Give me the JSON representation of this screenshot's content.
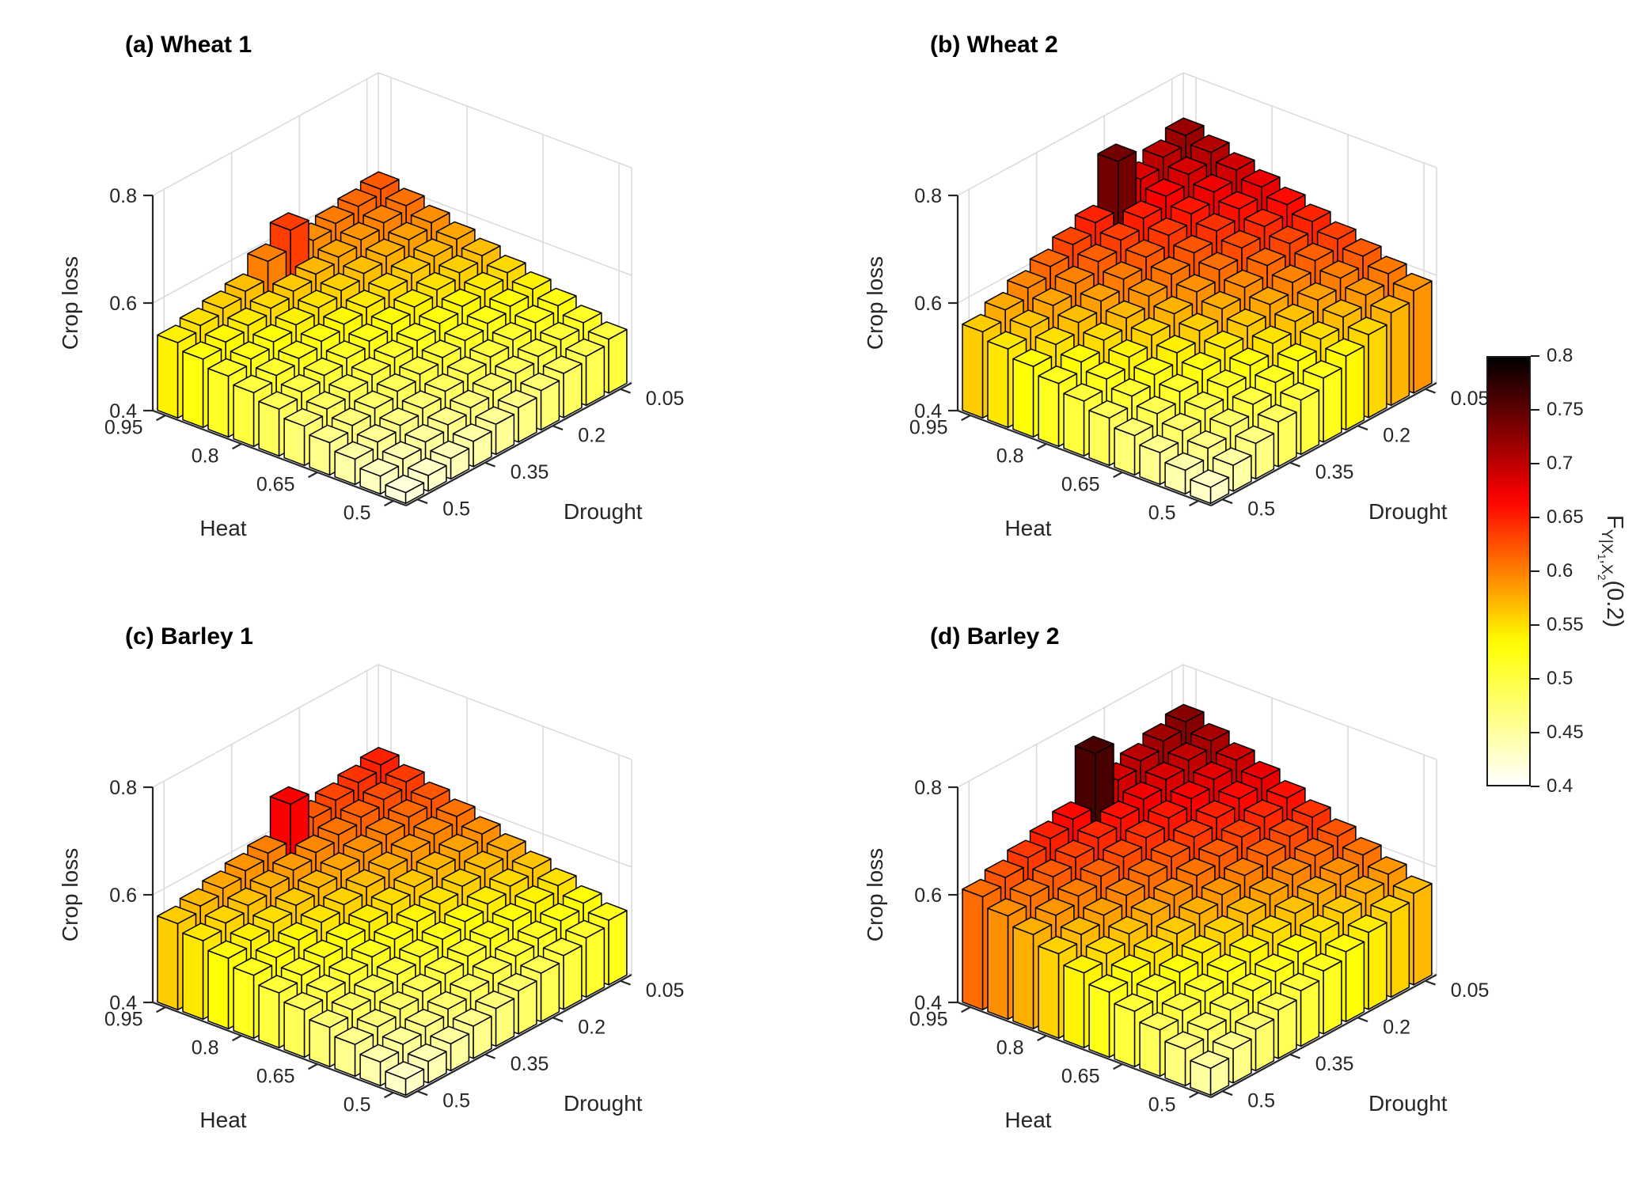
{
  "chart_data": [
    {
      "type": "bar3d",
      "panel": "a",
      "title": "(a) Wheat 1",
      "xlabel": "Heat",
      "ylabel": "Drought",
      "zlabel": "Crop loss",
      "x_ticks": [
        0.95,
        0.8,
        0.65,
        0.5
      ],
      "y_ticks": [
        0.05,
        0.2,
        0.35,
        0.5
      ],
      "z_ticks": [
        0.4,
        0.6,
        0.8
      ],
      "zlim": [
        0.4,
        0.8
      ],
      "heat_levels": [
        0.95,
        0.9,
        0.85,
        0.8,
        0.75,
        0.7,
        0.65,
        0.6,
        0.55,
        0.5
      ],
      "drought_levels": [
        0.05,
        0.1,
        0.15,
        0.2,
        0.25,
        0.3,
        0.35,
        0.4,
        0.45,
        0.5
      ],
      "values": [
        [
          0.62,
          0.611,
          0.602,
          0.593,
          0.635,
          0.6,
          0.567,
          0.558,
          0.549,
          0.54
        ],
        [
          0.607,
          0.598,
          0.589,
          0.58,
          0.571,
          0.562,
          0.553,
          0.544,
          0.536,
          0.527
        ],
        [
          0.593,
          0.584,
          0.576,
          0.567,
          0.558,
          0.549,
          0.54,
          0.531,
          0.522,
          0.513
        ],
        [
          0.58,
          0.571,
          0.562,
          0.553,
          0.544,
          0.536,
          0.527,
          0.518,
          0.509,
          0.5
        ],
        [
          0.567,
          0.558,
          0.549,
          0.54,
          0.531,
          0.522,
          0.513,
          0.504,
          0.496,
          0.487
        ],
        [
          0.553,
          0.544,
          0.536,
          0.527,
          0.518,
          0.509,
          0.5,
          0.491,
          0.482,
          0.473
        ],
        [
          0.54,
          0.531,
          0.522,
          0.513,
          0.504,
          0.496,
          0.487,
          0.478,
          0.469,
          0.46
        ],
        [
          0.527,
          0.518,
          0.509,
          0.5,
          0.491,
          0.482,
          0.473,
          0.464,
          0.456,
          0.447
        ],
        [
          0.513,
          0.504,
          0.496,
          0.487,
          0.478,
          0.469,
          0.46,
          0.451,
          0.442,
          0.433
        ],
        [
          0.5,
          0.491,
          0.482,
          0.473,
          0.464,
          0.456,
          0.447,
          0.438,
          0.429,
          0.42
        ]
      ]
    },
    {
      "type": "bar3d",
      "panel": "b",
      "title": "(b) Wheat 2",
      "xlabel": "Heat",
      "ylabel": "Drought",
      "zlabel": "Crop loss",
      "x_ticks": [
        0.95,
        0.8,
        0.65,
        0.5
      ],
      "y_ticks": [
        0.05,
        0.2,
        0.35,
        0.5
      ],
      "z_ticks": [
        0.4,
        0.6,
        0.8
      ],
      "zlim": [
        0.4,
        0.8
      ],
      "heat_levels": [
        0.95,
        0.9,
        0.85,
        0.8,
        0.75,
        0.7,
        0.65,
        0.6,
        0.55,
        0.5
      ],
      "drought_levels": [
        0.05,
        0.1,
        0.15,
        0.2,
        0.25,
        0.3,
        0.35,
        0.4,
        0.45,
        0.5
      ],
      "values": [
        [
          0.72,
          0.702,
          0.684,
          0.74,
          0.649,
          0.631,
          0.613,
          0.596,
          0.578,
          0.56
        ],
        [
          0.706,
          0.688,
          0.67,
          0.652,
          0.634,
          0.617,
          0.599,
          0.581,
          0.563,
          0.546
        ],
        [
          0.691,
          0.673,
          0.655,
          0.638,
          0.62,
          0.602,
          0.584,
          0.567,
          0.549,
          0.531
        ],
        [
          0.677,
          0.659,
          0.641,
          0.623,
          0.606,
          0.588,
          0.57,
          0.552,
          0.534,
          0.517
        ],
        [
          0.662,
          0.644,
          0.627,
          0.609,
          0.591,
          0.573,
          0.556,
          0.538,
          0.52,
          0.502
        ],
        [
          0.648,
          0.63,
          0.612,
          0.594,
          0.577,
          0.559,
          0.541,
          0.523,
          0.506,
          0.488
        ],
        [
          0.633,
          0.616,
          0.598,
          0.58,
          0.562,
          0.544,
          0.527,
          0.509,
          0.491,
          0.473
        ],
        [
          0.619,
          0.601,
          0.583,
          0.566,
          0.548,
          0.53,
          0.512,
          0.494,
          0.477,
          0.459
        ],
        [
          0.604,
          0.587,
          0.569,
          0.551,
          0.533,
          0.516,
          0.498,
          0.48,
          0.462,
          0.444
        ],
        [
          0.59,
          0.572,
          0.554,
          0.537,
          0.519,
          0.501,
          0.483,
          0.466,
          0.448,
          0.43
        ]
      ]
    },
    {
      "type": "bar3d",
      "panel": "c",
      "title": "(c) Barley 1",
      "xlabel": "Heat",
      "ylabel": "Drought",
      "zlabel": "Crop loss",
      "x_ticks": [
        0.95,
        0.8,
        0.65,
        0.5
      ],
      "y_ticks": [
        0.05,
        0.2,
        0.35,
        0.5
      ],
      "z_ticks": [
        0.4,
        0.6,
        0.8
      ],
      "zlim": [
        0.4,
        0.8
      ],
      "heat_levels": [
        0.95,
        0.9,
        0.85,
        0.8,
        0.75,
        0.7,
        0.65,
        0.6,
        0.55,
        0.5
      ],
      "drought_levels": [
        0.05,
        0.1,
        0.15,
        0.2,
        0.25,
        0.3,
        0.35,
        0.4,
        0.45,
        0.5
      ],
      "values": [
        [
          0.65,
          0.64,
          0.63,
          0.62,
          0.668,
          0.6,
          0.59,
          0.58,
          0.57,
          0.56
        ],
        [
          0.636,
          0.626,
          0.616,
          0.606,
          0.596,
          0.586,
          0.576,
          0.566,
          0.556,
          0.546
        ],
        [
          0.621,
          0.611,
          0.601,
          0.591,
          0.581,
          0.571,
          0.561,
          0.551,
          0.541,
          0.531
        ],
        [
          0.607,
          0.597,
          0.587,
          0.577,
          0.567,
          0.557,
          0.547,
          0.537,
          0.527,
          0.517
        ],
        [
          0.592,
          0.582,
          0.572,
          0.562,
          0.552,
          0.542,
          0.532,
          0.522,
          0.512,
          0.502
        ],
        [
          0.578,
          0.568,
          0.558,
          0.548,
          0.538,
          0.528,
          0.518,
          0.508,
          0.498,
          0.488
        ],
        [
          0.563,
          0.553,
          0.543,
          0.533,
          0.523,
          0.513,
          0.503,
          0.493,
          0.483,
          0.473
        ],
        [
          0.549,
          0.539,
          0.529,
          0.519,
          0.509,
          0.499,
          0.489,
          0.479,
          0.469,
          0.459
        ],
        [
          0.534,
          0.524,
          0.514,
          0.504,
          0.494,
          0.484,
          0.474,
          0.464,
          0.454,
          0.444
        ],
        [
          0.52,
          0.51,
          0.5,
          0.49,
          0.48,
          0.47,
          0.46,
          0.45,
          0.44,
          0.43
        ]
      ]
    },
    {
      "type": "bar3d",
      "panel": "d",
      "title": "(d) Barley 2",
      "xlabel": "Heat",
      "ylabel": "Drought",
      "zlabel": "Crop loss",
      "x_ticks": [
        0.95,
        0.8,
        0.65,
        0.5
      ],
      "y_ticks": [
        0.05,
        0.2,
        0.35,
        0.5
      ],
      "z_ticks": [
        0.4,
        0.6,
        0.8
      ],
      "zlim": [
        0.4,
        0.8
      ],
      "heat_levels": [
        0.95,
        0.9,
        0.85,
        0.8,
        0.75,
        0.7,
        0.65,
        0.6,
        0.55,
        0.5
      ],
      "drought_levels": [
        0.05,
        0.1,
        0.15,
        0.2,
        0.25,
        0.3,
        0.35,
        0.4,
        0.45,
        0.5
      ],
      "values": [
        [
          0.73,
          0.717,
          0.703,
          0.69,
          0.762,
          0.663,
          0.65,
          0.637,
          0.623,
          0.61
        ],
        [
          0.712,
          0.699,
          0.686,
          0.672,
          0.659,
          0.646,
          0.632,
          0.619,
          0.606,
          0.592
        ],
        [
          0.694,
          0.681,
          0.668,
          0.655,
          0.641,
          0.628,
          0.615,
          0.601,
          0.588,
          0.575
        ],
        [
          0.677,
          0.663,
          0.65,
          0.637,
          0.623,
          0.61,
          0.597,
          0.583,
          0.57,
          0.557
        ],
        [
          0.659,
          0.646,
          0.632,
          0.619,
          0.606,
          0.592,
          0.579,
          0.566,
          0.552,
          0.539
        ],
        [
          0.641,
          0.628,
          0.615,
          0.601,
          0.588,
          0.575,
          0.561,
          0.548,
          0.535,
          0.521
        ],
        [
          0.623,
          0.61,
          0.597,
          0.583,
          0.57,
          0.557,
          0.543,
          0.53,
          0.517,
          0.503
        ],
        [
          0.606,
          0.592,
          0.579,
          0.566,
          0.552,
          0.539,
          0.526,
          0.512,
          0.499,
          0.486
        ],
        [
          0.588,
          0.575,
          0.561,
          0.548,
          0.535,
          0.521,
          0.508,
          0.495,
          0.481,
          0.468
        ],
        [
          0.57,
          0.557,
          0.543,
          0.53,
          0.517,
          0.503,
          0.49,
          0.477,
          0.463,
          0.45
        ]
      ]
    }
  ],
  "colorbar": {
    "range": [
      0.4,
      0.8
    ],
    "ticks": [
      0.8,
      0.75,
      0.7,
      0.65,
      0.6,
      0.55,
      0.5,
      0.45,
      0.4
    ],
    "colormap": "reversed-hot (white-yellow-orange-red-darkred-black)",
    "label": {
      "base": "F",
      "sub_main": "Y|X",
      "sub_1": "1",
      "sub_mid": ",X",
      "sub_2": "2",
      "suffix": "(0.2)"
    }
  },
  "styles": {
    "background": "#ffffff",
    "grid_color": "#d9d9d9",
    "axis_color": "#262626",
    "bar_edge_color": "#000000",
    "title_color": "#000000"
  }
}
